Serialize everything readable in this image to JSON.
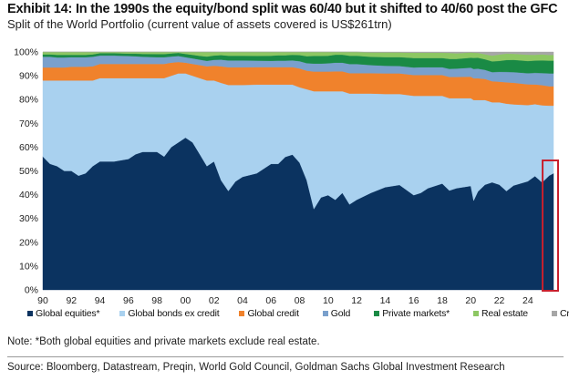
{
  "header": {
    "title": "Exhibit 14: In the 1990s the equity/bond split was 60/40 but it shifted to 40/60 post the GFC",
    "subtitle": "Split of the World Portfolio (current value of assets covered is US$261trn)"
  },
  "footer": {
    "note": "Note: *Both global equities and private markets exclude real estate.",
    "source": "Source: Bloomberg, Datastream, Preqin, World Gold Council, Goldman Sachs Global Investment Research"
  },
  "chart_data": {
    "type": "area",
    "stacked": true,
    "normalized": true,
    "title": "Exhibit 14: In the 1990s the equity/bond split was 60/40 but it shifted to 40/60 post the GFC",
    "subtitle": "Split of the World Portfolio (current value of assets covered is US$261trn)",
    "xlabel": "",
    "ylabel": "",
    "xlim": [
      1990,
      2025.8
    ],
    "ylim": [
      0,
      100
    ],
    "y_ticks": [
      "0%",
      "10%",
      "20%",
      "30%",
      "40%",
      "50%",
      "60%",
      "70%",
      "80%",
      "90%",
      "100%"
    ],
    "x_ticks": [
      "90",
      "92",
      "94",
      "96",
      "98",
      "00",
      "02",
      "04",
      "06",
      "08",
      "10",
      "12",
      "14",
      "16",
      "18",
      "20",
      "22",
      "24"
    ],
    "x_tick_values": [
      1990,
      1992,
      1994,
      1996,
      1998,
      2000,
      2002,
      2004,
      2006,
      2008,
      2010,
      2012,
      2014,
      2016,
      2018,
      2020,
      2022,
      2024
    ],
    "grid": false,
    "legend_position": "bottom",
    "highlight": {
      "label": "latest period",
      "x_range": [
        2025.1,
        2025.8
      ],
      "color": "#c8202e"
    },
    "x": [
      1990.0,
      1990.5,
      1991.0,
      1991.5,
      1992.0,
      1992.5,
      1993.0,
      1993.5,
      1994.0,
      1995.0,
      1996.0,
      1996.5,
      1997.0,
      1998.0,
      1998.5,
      1999.0,
      1999.5,
      2000.0,
      2000.5,
      2001.0,
      2001.5,
      2002.0,
      2002.5,
      2003.0,
      2003.5,
      2004.0,
      2005.0,
      2006.0,
      2006.5,
      2007.0,
      2007.5,
      2008.0,
      2008.5,
      2009.0,
      2009.5,
      2010.0,
      2010.5,
      2011.0,
      2011.5,
      2012.0,
      2013.0,
      2014.0,
      2015.0,
      2016.0,
      2016.5,
      2017.0,
      2018.0,
      2018.5,
      2019.0,
      2020.0,
      2020.2,
      2020.5,
      2021.0,
      2021.5,
      2022.0,
      2022.5,
      2023.0,
      2024.0,
      2024.5,
      2025.0,
      2025.5,
      2025.8
    ],
    "series": [
      {
        "name": "Global equities*",
        "color": "#0b3360",
        "values": [
          56,
          53,
          52,
          50,
          50,
          48,
          49,
          52,
          54,
          54,
          55,
          57,
          58,
          58,
          56,
          60,
          62,
          64,
          62,
          57,
          52,
          54,
          46,
          42,
          46,
          48,
          50,
          54,
          54,
          57,
          58,
          54,
          47,
          35,
          40,
          41,
          39,
          42,
          37,
          39,
          42,
          44,
          45,
          41,
          42,
          44,
          46,
          43,
          44,
          45,
          39,
          43,
          46,
          47,
          46,
          43,
          45,
          47,
          49,
          46,
          49,
          50
        ]
      },
      {
        "name": "Global bonds ex credit",
        "color": "#a9d1ef",
        "values": [
          32,
          35,
          36,
          38,
          38,
          40,
          39,
          36,
          35,
          35,
          34,
          32,
          31,
          31,
          33,
          30,
          29,
          27,
          28,
          32,
          36,
          34,
          41,
          45,
          41,
          39,
          38,
          34,
          34,
          31,
          30,
          32,
          39,
          51,
          46,
          45,
          47,
          44,
          48,
          46,
          43,
          40,
          39,
          43,
          42,
          40,
          38,
          40,
          39,
          38,
          44,
          40,
          37,
          35,
          36,
          38,
          35,
          33,
          31,
          33,
          30,
          29
        ]
      },
      {
        "name": "Global credit",
        "color": "#f0822c",
        "values": [
          5.5,
          5.5,
          5.5,
          5.5,
          5.8,
          5.8,
          5.8,
          6.0,
          6.0,
          6.0,
          6.0,
          6.0,
          6.0,
          6.0,
          6.0,
          5.5,
          4.8,
          4.5,
          5.0,
          5.5,
          6.0,
          6.2,
          7.0,
          7.5,
          7.5,
          7.5,
          7.5,
          7.5,
          7.5,
          7.5,
          7.5,
          8.0,
          8.0,
          8.5,
          8.5,
          8.5,
          8.6,
          8.6,
          8.8,
          8.8,
          8.8,
          8.8,
          8.8,
          9.0,
          9.0,
          9.0,
          9.0,
          9.2,
          9.2,
          9.3,
          9.5,
          9.5,
          9.2,
          9.2,
          9.0,
          9.3,
          9.3,
          9.0,
          8.5,
          8.6,
          8.3,
          8.3
        ]
      },
      {
        "name": "Gold",
        "color": "#7aa0cc",
        "values": [
          4.5,
          4.5,
          4.2,
          4.2,
          4.0,
          4.0,
          4.0,
          4.0,
          3.5,
          3.5,
          3.3,
          3.2,
          3.0,
          2.8,
          2.8,
          2.6,
          2.5,
          2.3,
          2.3,
          2.3,
          2.3,
          2.5,
          2.8,
          2.9,
          2.9,
          2.9,
          2.8,
          2.7,
          2.8,
          2.8,
          2.9,
          3.1,
          3.2,
          3.5,
          3.5,
          3.6,
          3.8,
          3.8,
          4.0,
          4.0,
          3.5,
          3.3,
          3.2,
          3.3,
          3.4,
          3.4,
          3.4,
          3.5,
          3.6,
          3.9,
          4.1,
          4.2,
          4.0,
          4.0,
          4.3,
          4.5,
          4.6,
          4.8,
          5.0,
          5.2,
          5.5,
          5.5
        ]
      },
      {
        "name": "Private markets*",
        "color": "#1a8a45",
        "values": [
          1.0,
          1.0,
          1.1,
          1.1,
          1.0,
          1.0,
          1.0,
          1.0,
          1.0,
          1.0,
          1.0,
          1.1,
          1.2,
          1.3,
          1.3,
          1.3,
          1.3,
          1.4,
          1.5,
          1.6,
          1.8,
          1.8,
          1.9,
          2.0,
          2.0,
          2.0,
          2.0,
          2.2,
          2.3,
          2.3,
          2.4,
          2.6,
          3.0,
          3.3,
          3.3,
          3.3,
          3.4,
          3.4,
          3.6,
          3.6,
          3.6,
          3.7,
          3.8,
          4.1,
          4.0,
          4.0,
          4.0,
          4.3,
          4.2,
          4.3,
          4.8,
          4.8,
          4.6,
          4.7,
          4.8,
          5.2,
          5.3,
          5.3,
          5.3,
          5.4,
          5.5,
          5.5
        ]
      },
      {
        "name": "Real estate",
        "color": "#8dc763",
        "values": [
          1.0,
          1.0,
          1.2,
          1.2,
          1.2,
          1.2,
          1.2,
          1.0,
          0.5,
          0.5,
          0.7,
          0.7,
          0.8,
          0.9,
          0.9,
          0.6,
          0.4,
          0.8,
          1.2,
          1.6,
          1.9,
          1.5,
          1.3,
          1.6,
          1.6,
          1.6,
          1.7,
          1.6,
          1.4,
          1.4,
          1.2,
          1.3,
          1.8,
          1.7,
          1.7,
          1.6,
          1.2,
          1.2,
          1.6,
          1.6,
          1.9,
          2.0,
          2.0,
          2.3,
          2.3,
          2.3,
          2.3,
          2.6,
          2.4,
          2.3,
          2.3,
          2.1,
          2.2,
          2.5,
          2.8,
          2.8,
          2.6,
          2.7,
          2.5,
          2.6,
          2.4,
          2.4
        ]
      },
      {
        "name": "Crypto",
        "color": "#a6a6a6",
        "values": [
          0,
          0,
          0,
          0,
          0,
          0,
          0,
          0,
          0,
          0,
          0,
          0,
          0,
          0,
          0,
          0,
          0,
          0,
          0,
          0,
          0,
          0,
          0,
          0,
          0,
          0,
          0,
          0,
          0,
          0,
          0,
          0,
          0,
          0,
          0,
          0,
          0,
          0,
          0,
          0,
          0.2,
          0.2,
          0.2,
          0.3,
          0.3,
          0.3,
          0.3,
          0.4,
          0.6,
          0.2,
          0.3,
          0.4,
          1.0,
          1.6,
          1.1,
          0.7,
          0.8,
          1.2,
          1.2,
          1.0,
          1.3,
          1.3
        ]
      }
    ]
  }
}
